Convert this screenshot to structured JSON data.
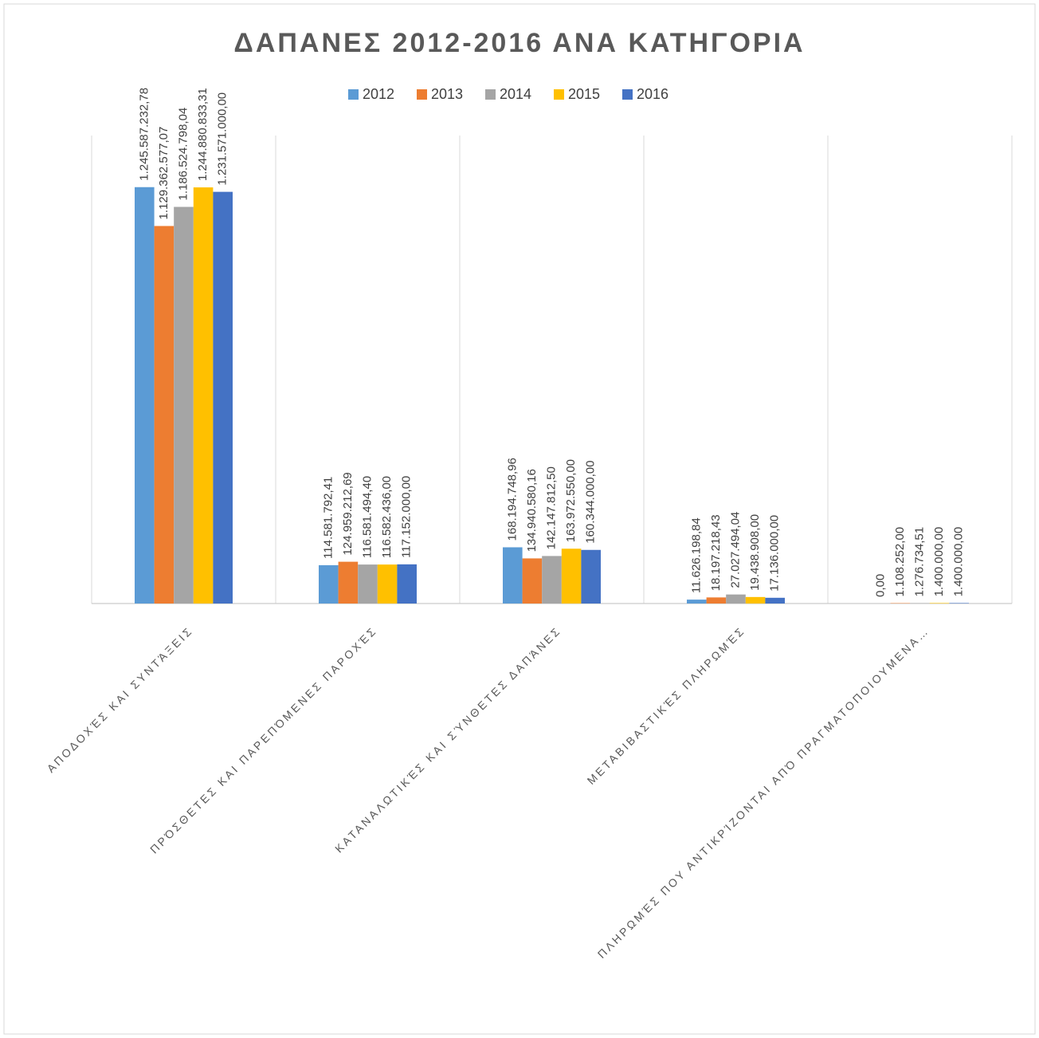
{
  "chart_data": {
    "type": "bar",
    "title": "ΔΑΠΑΝΕΣ 2012-2016 ΑΝΑ ΚΑΤΗΓΟΡΙΑ",
    "categories": [
      "ΑΠΟΔΟΧΈΣ ΚΑΙ ΣΥΝΤΆΞΕΙΣ",
      "ΠΡΌΣΘΕΤΕΣ ΚΑΙ ΠΑΡΕΠΌΜΕΝΕΣ ΠΑΡΟΧΈΣ",
      "ΚΑΤΑΝΑΛΩΤΙΚΈΣ ΚΑΙ ΣΎΝΘΕΤΕΣ ΔΑΠΆΝΕΣ",
      "ΜΕΤΑΒΙΒΑΣΤΙΚΈΣ ΠΛΗΡΩΜΈΣ",
      "ΠΛΗΡΩΜΈΣ ΠΟΥ ΑΝΤΙΚΡΊΖΟΝΤΑΙ ΑΠΌ ΠΡΑΓΜΑΤΟΠΟΙΟΥΜΕΝΑ…"
    ],
    "series": [
      {
        "name": "2012",
        "color": "#5b9bd5",
        "values": [
          1245587232.78,
          114581792.41,
          168194748.96,
          11626198.84,
          0
        ],
        "value_labels": [
          "1.245.587.232,78",
          "114.581.792,41",
          "168.194.748,96",
          "11.626.198,84",
          "0,00"
        ]
      },
      {
        "name": "2013",
        "color": "#ed7d31",
        "values": [
          1129362577.07,
          124959212.69,
          134940580.16,
          18197218.43,
          1108252.0
        ],
        "value_labels": [
          "1.129.362.577,07",
          "124.959.212,69",
          "134.940.580,16",
          "18.197.218,43",
          "1.108.252,00"
        ]
      },
      {
        "name": "2014",
        "color": "#a5a5a5",
        "values": [
          1186524798.04,
          116581494.4,
          142147812.5,
          27027494.04,
          1276734.51
        ],
        "value_labels": [
          "1.186.524.798,04",
          "116.581.494,40",
          "142.147.812,50",
          "27.027.494,04",
          "1.276.734,51"
        ]
      },
      {
        "name": "2015",
        "color": "#ffc000",
        "values": [
          1244880833.31,
          116582436.0,
          163972550.0,
          19438908.0,
          1400000.0
        ],
        "value_labels": [
          "1.244.880.833,31",
          "116.582.436,00",
          "163.972.550,00",
          "19.438.908,00",
          "1.400.000,00"
        ]
      },
      {
        "name": "2016",
        "color": "#4472c4",
        "values": [
          1231571000.0,
          117152000.0,
          160344000.0,
          17136000.0,
          1400000.0
        ],
        "value_labels": [
          "1.231.571.000,00",
          "117.152.000,00",
          "160.344.000,00",
          "17.136.000,00",
          "1.400.000,00"
        ]
      }
    ],
    "ylim": [
      0,
      1400000000
    ],
    "legend": "top"
  }
}
